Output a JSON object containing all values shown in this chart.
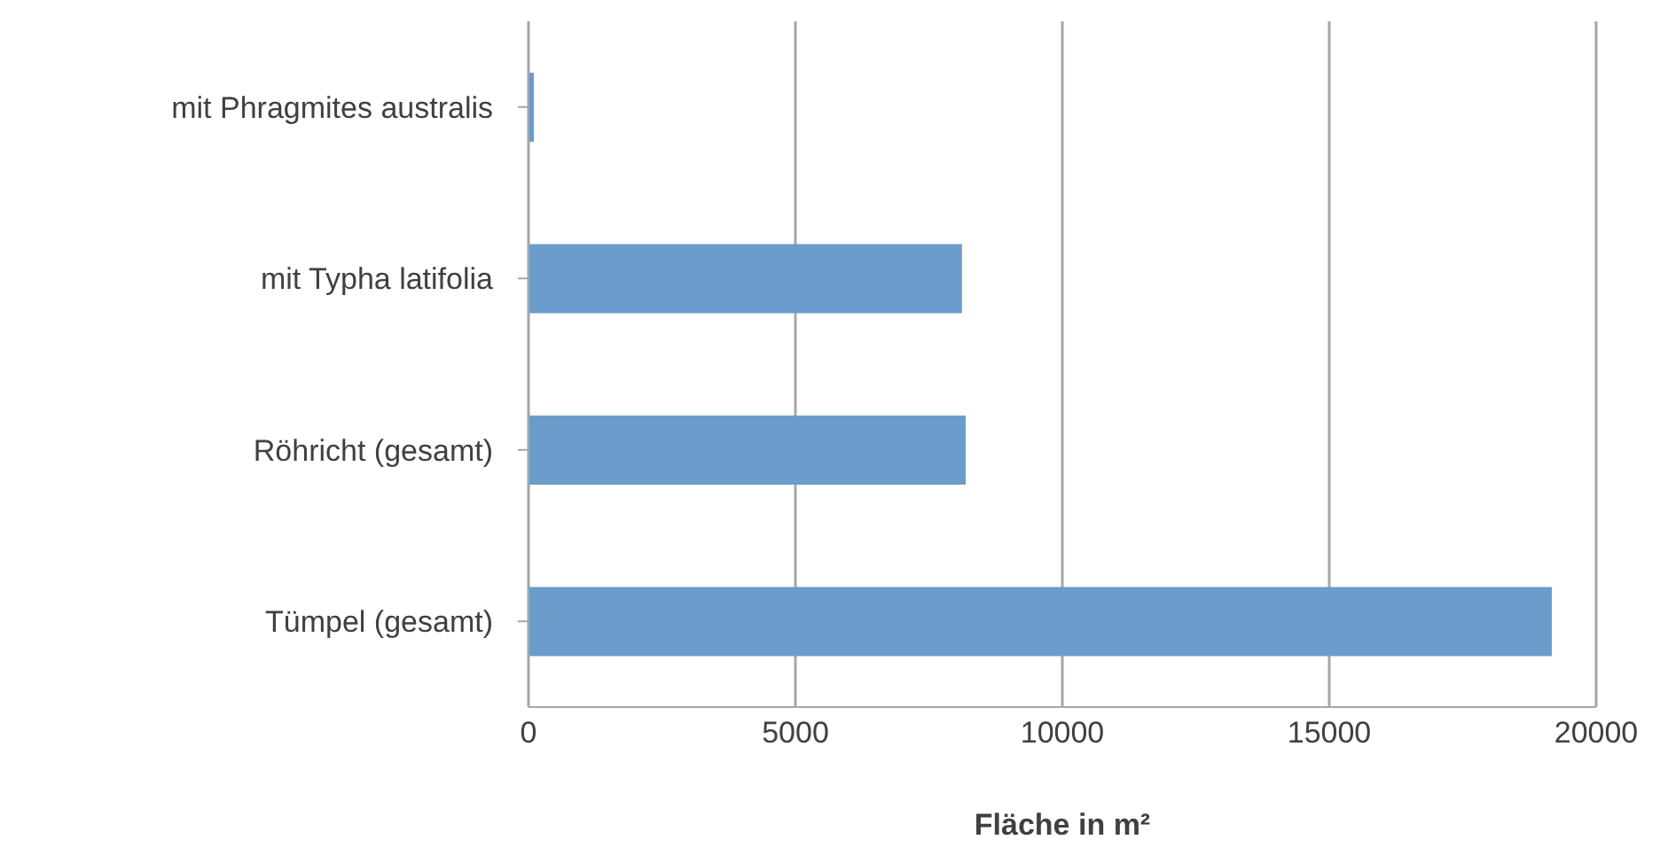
{
  "chart_data": {
    "type": "bar",
    "orientation": "horizontal",
    "categories": [
      "mit Phragmites australis",
      "mit Typha latifolia",
      "Röhricht (gesamt)",
      "Tümpel (gesamt)"
    ],
    "values": [
      100,
      8120,
      8190,
      19170
    ],
    "color": "#6a9ccc",
    "xlabel": "Fläche in m²",
    "xlim": [
      0,
      20000
    ],
    "xticks": [
      0,
      5000,
      10000,
      15000,
      20000
    ],
    "grid": "x"
  }
}
